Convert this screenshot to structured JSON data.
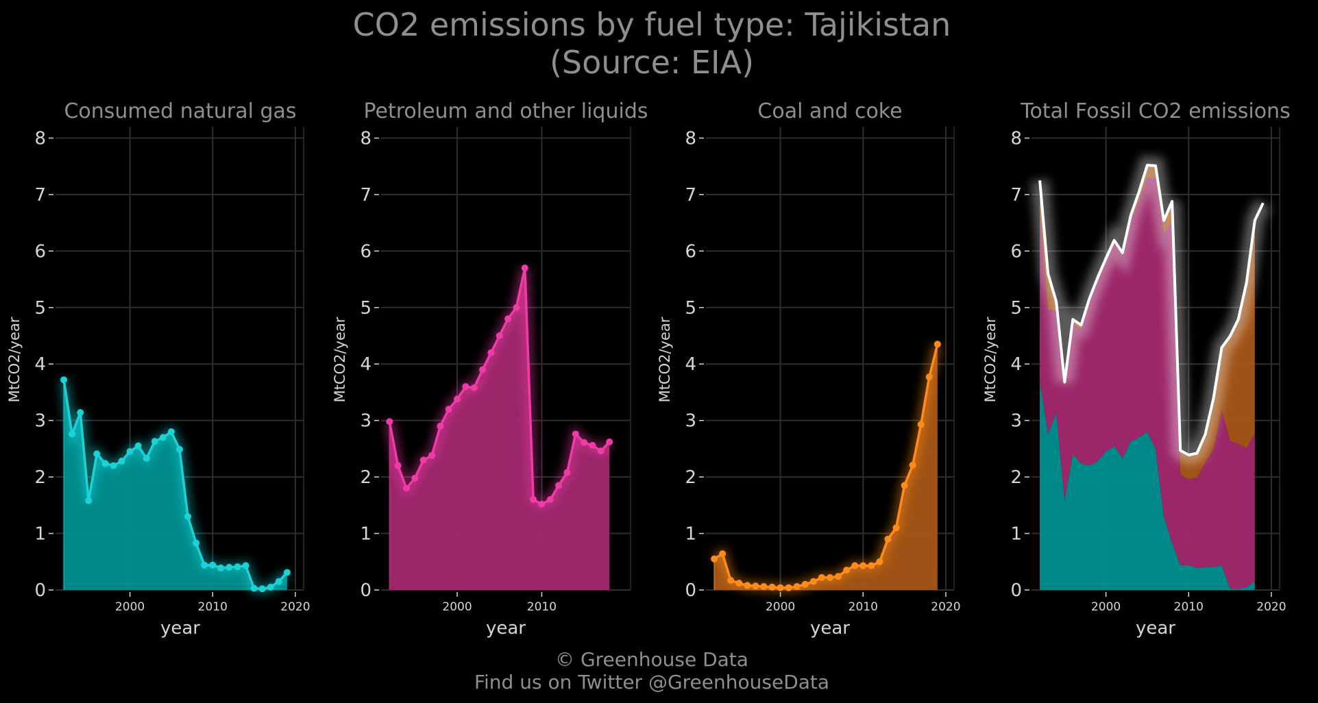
{
  "title_line1": "CO2 emissions by fuel type: Tajikistan",
  "title_line2": "(Source: EIA)",
  "footer_line1": "© Greenhouse Data",
  "footer_line2": "Find us on Twitter @GreenhouseData",
  "colors": {
    "background": "#000000",
    "gas": "#19d3d6",
    "petroleum": "#f03aa8",
    "coal": "#ff8c1a",
    "total": "#ffffff",
    "gas_fill": "#009090",
    "petroleum_fill": "#a3286e",
    "coal_fill": "#a85616",
    "text": "#d6d6d6",
    "title": "#8f8f8f",
    "grid": "#2e2e2e"
  },
  "chart_data": [
    {
      "type": "area",
      "panel": "gas",
      "title": "Consumed natural gas",
      "xlabel": "year",
      "ylabel": "MtCO2/year",
      "x_ticks": [
        2000,
        2010,
        2020
      ],
      "y_ticks": [
        0,
        1,
        2,
        3,
        4,
        5,
        6,
        7,
        8
      ],
      "xlim": [
        1991,
        2021
      ],
      "ylim": [
        0,
        8.2
      ],
      "grid": true,
      "x": [
        1992,
        1993,
        1994,
        1995,
        1996,
        1997,
        1998,
        1999,
        2000,
        2001,
        2002,
        2003,
        2004,
        2005,
        2006,
        2007,
        2008,
        2009,
        2010,
        2011,
        2012,
        2013,
        2014,
        2015,
        2016,
        2017,
        2018,
        2019
      ],
      "values": [
        3.72,
        2.76,
        3.14,
        1.58,
        2.41,
        2.24,
        2.2,
        2.28,
        2.45,
        2.55,
        2.33,
        2.63,
        2.7,
        2.8,
        2.49,
        1.3,
        0.83,
        0.44,
        0.44,
        0.39,
        0.4,
        0.41,
        0.43,
        0.03,
        0.02,
        0.05,
        0.15,
        0.31
      ]
    },
    {
      "type": "area",
      "panel": "petroleum",
      "title": "Petroleum and other liquids",
      "xlabel": "year",
      "ylabel": "MtCO2/year",
      "x_ticks": [
        2000,
        2010
      ],
      "y_ticks": [
        0,
        1,
        2,
        3,
        4,
        5,
        6,
        7,
        8
      ],
      "xlim": [
        1991,
        2020.5
      ],
      "ylim": [
        0,
        8.2
      ],
      "grid": true,
      "x": [
        1992,
        1993,
        1994,
        1995,
        1996,
        1997,
        1998,
        1999,
        2000,
        2001,
        2002,
        2003,
        2004,
        2005,
        2006,
        2007,
        2008,
        2009,
        2010,
        2011,
        2012,
        2013,
        2014,
        2015,
        2016,
        2017,
        2018
      ],
      "values": [
        2.98,
        2.2,
        1.8,
        1.98,
        2.3,
        2.38,
        2.9,
        3.2,
        3.38,
        3.6,
        3.58,
        3.9,
        4.2,
        4.5,
        4.8,
        5.0,
        5.7,
        1.6,
        1.52,
        1.6,
        1.85,
        2.08,
        2.76,
        2.61,
        2.56,
        2.46,
        2.62
      ]
    },
    {
      "type": "area",
      "panel": "coal",
      "title": "Coal and coke",
      "xlabel": "year",
      "ylabel": "MtCO2/year",
      "x_ticks": [
        2000,
        2010,
        2020
      ],
      "y_ticks": [
        0,
        1,
        2,
        3,
        4,
        5,
        6,
        7,
        8
      ],
      "xlim": [
        1991,
        2021
      ],
      "ylim": [
        0,
        8.2
      ],
      "grid": true,
      "x": [
        1992,
        1993,
        1994,
        1995,
        1996,
        1997,
        1998,
        1999,
        2000,
        2001,
        2002,
        2003,
        2004,
        2005,
        2006,
        2007,
        2008,
        2009,
        2010,
        2011,
        2012,
        2013,
        2014,
        2015,
        2016,
        2017,
        2018,
        2019
      ],
      "values": [
        0.55,
        0.64,
        0.17,
        0.12,
        0.08,
        0.07,
        0.06,
        0.05,
        0.04,
        0.04,
        0.06,
        0.1,
        0.15,
        0.22,
        0.22,
        0.24,
        0.35,
        0.43,
        0.43,
        0.43,
        0.5,
        0.9,
        1.1,
        1.85,
        2.21,
        2.93,
        3.77,
        4.35
      ]
    },
    {
      "type": "area",
      "panel": "total",
      "title": "Total Fossil CO2 emissions",
      "xlabel": "year",
      "ylabel": "MtCO2/year",
      "x_ticks": [
        2000,
        2010,
        2020
      ],
      "y_ticks": [
        0,
        1,
        2,
        3,
        4,
        5,
        6,
        7,
        8
      ],
      "xlim": [
        1991,
        2021
      ],
      "ylim": [
        0,
        8.2
      ],
      "grid": true,
      "stacked": true,
      "x": [
        1992,
        1993,
        1994,
        1995,
        1996,
        1997,
        1998,
        1999,
        2000,
        2001,
        2002,
        2003,
        2004,
        2005,
        2006,
        2007,
        2008,
        2009,
        2010,
        2011,
        2012,
        2013,
        2014,
        2015,
        2016,
        2017,
        2018
      ],
      "series": [
        {
          "key": "gas",
          "values": [
            3.72,
            2.76,
            3.14,
            1.58,
            2.41,
            2.24,
            2.2,
            2.28,
            2.45,
            2.55,
            2.33,
            2.63,
            2.7,
            2.8,
            2.49,
            1.3,
            0.83,
            0.44,
            0.44,
            0.39,
            0.4,
            0.41,
            0.43,
            0.03,
            0.02,
            0.05,
            0.15
          ]
        },
        {
          "key": "petroleum",
          "values": [
            2.98,
            2.2,
            1.8,
            1.98,
            2.3,
            2.38,
            2.9,
            3.2,
            3.38,
            3.6,
            3.58,
            3.9,
            4.2,
            4.5,
            4.8,
            5.0,
            5.7,
            1.6,
            1.52,
            1.6,
            1.85,
            2.08,
            2.76,
            2.61,
            2.56,
            2.46,
            2.62
          ]
        },
        {
          "key": "coal",
          "values": [
            0.55,
            0.64,
            0.17,
            0.12,
            0.08,
            0.07,
            0.06,
            0.05,
            0.04,
            0.04,
            0.06,
            0.1,
            0.15,
            0.22,
            0.22,
            0.24,
            0.35,
            0.43,
            0.43,
            0.43,
            0.5,
            0.9,
            1.1,
            1.85,
            2.21,
            2.93,
            3.77
          ]
        }
      ],
      "total_line": {
        "x": [
          1992,
          1993,
          1994,
          1995,
          1996,
          1997,
          1998,
          1999,
          2000,
          2001,
          2002,
          2003,
          2004,
          2005,
          2006,
          2007,
          2008,
          2009,
          2010,
          2011,
          2012,
          2013,
          2014,
          2015,
          2016,
          2017,
          2018,
          2019
        ],
        "values": [
          7.25,
          5.6,
          5.1,
          3.68,
          4.79,
          4.69,
          5.16,
          5.53,
          5.87,
          6.19,
          5.97,
          6.63,
          7.05,
          7.52,
          7.51,
          6.54,
          6.88,
          2.47,
          2.39,
          2.42,
          2.75,
          3.39,
          4.29,
          4.49,
          4.79,
          5.44,
          6.54,
          6.85
        ]
      }
    }
  ]
}
